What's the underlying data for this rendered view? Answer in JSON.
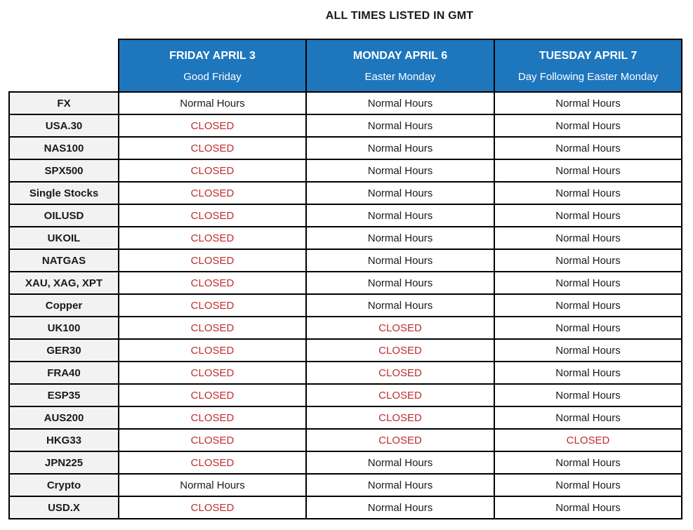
{
  "title": "ALL TIMES LISTED IN GMT",
  "colors": {
    "header_bg": "#1E76BD",
    "header_text": "#FFFFFF",
    "label_bg": "#F2F2F2",
    "closed_text": "#BE2D30",
    "normal_text": "#1A1A1A",
    "border": "#000000"
  },
  "columns": [
    {
      "day": "FRIDAY APRIL 3",
      "subtitle": "Good Friday"
    },
    {
      "day": "MONDAY APRIL 6",
      "subtitle": "Easter Monday"
    },
    {
      "day": "TUESDAY APRIL 7",
      "subtitle": "Day Following Easter Monday"
    }
  ],
  "rows": [
    {
      "label": "FX",
      "values": [
        "Normal Hours",
        "Normal Hours",
        "Normal Hours"
      ]
    },
    {
      "label": "USA.30",
      "values": [
        "CLOSED",
        "Normal Hours",
        "Normal Hours"
      ]
    },
    {
      "label": "NAS100",
      "values": [
        "CLOSED",
        "Normal Hours",
        "Normal Hours"
      ]
    },
    {
      "label": "SPX500",
      "values": [
        "CLOSED",
        "Normal Hours",
        "Normal Hours"
      ]
    },
    {
      "label": "Single Stocks",
      "values": [
        "CLOSED",
        "Normal Hours",
        "Normal Hours"
      ]
    },
    {
      "label": "OILUSD",
      "values": [
        "CLOSED",
        "Normal Hours",
        "Normal Hours"
      ]
    },
    {
      "label": "UKOIL",
      "values": [
        "CLOSED",
        "Normal Hours",
        "Normal Hours"
      ]
    },
    {
      "label": "NATGAS",
      "values": [
        "CLOSED",
        "Normal Hours",
        "Normal Hours"
      ]
    },
    {
      "label": "XAU, XAG, XPT",
      "values": [
        "CLOSED",
        "Normal Hours",
        "Normal Hours"
      ]
    },
    {
      "label": "Copper",
      "values": [
        "CLOSED",
        "Normal Hours",
        "Normal Hours"
      ]
    },
    {
      "label": "UK100",
      "values": [
        "CLOSED",
        "CLOSED",
        "Normal Hours"
      ]
    },
    {
      "label": "GER30",
      "values": [
        "CLOSED",
        "CLOSED",
        "Normal Hours"
      ]
    },
    {
      "label": "FRA40",
      "values": [
        "CLOSED",
        "CLOSED",
        "Normal Hours"
      ]
    },
    {
      "label": "ESP35",
      "values": [
        "CLOSED",
        "CLOSED",
        "Normal Hours"
      ]
    },
    {
      "label": "AUS200",
      "values": [
        "CLOSED",
        "CLOSED",
        "Normal Hours"
      ]
    },
    {
      "label": "HKG33",
      "values": [
        "CLOSED",
        "CLOSED",
        "CLOSED"
      ]
    },
    {
      "label": "JPN225",
      "values": [
        "CLOSED",
        "Normal Hours",
        "Normal Hours"
      ]
    },
    {
      "label": "Crypto",
      "values": [
        "Normal Hours",
        "Normal Hours",
        "Normal Hours"
      ]
    },
    {
      "label": "USD.X",
      "values": [
        "CLOSED",
        "Normal Hours",
        "Normal Hours"
      ]
    }
  ]
}
